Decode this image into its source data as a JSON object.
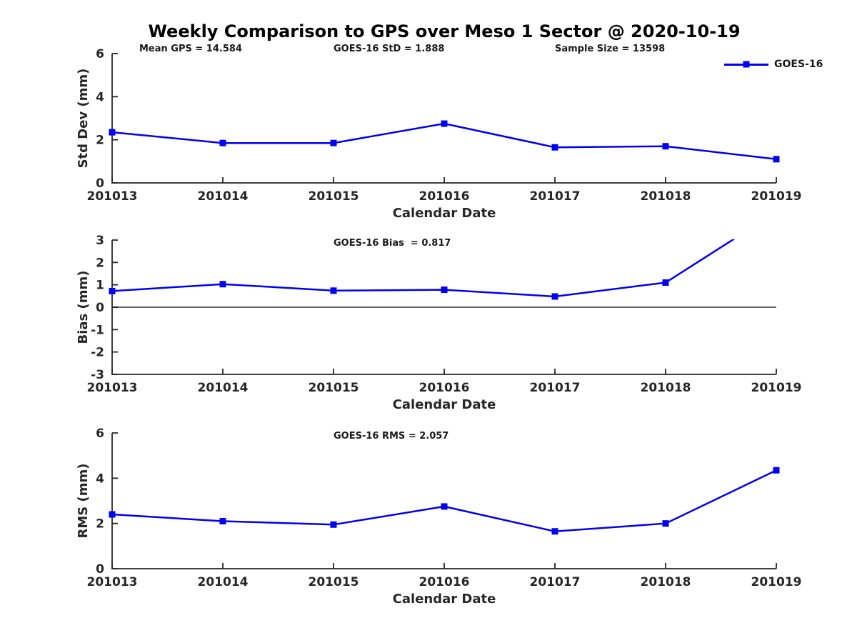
{
  "title": "Weekly Comparison to GPS over Meso 1 Sector @ 2020-10-19",
  "colors": {
    "line": "#0000EE",
    "axis": "#262626",
    "text": "#1a1a1a",
    "zero_line": "#000000",
    "background": "#FFFFFF"
  },
  "chart_data": {
    "type": "line",
    "categories": [
      "201013",
      "201014",
      "201015",
      "201016",
      "201017",
      "201018",
      "201019"
    ],
    "xlabel": "Calendar Date",
    "legend": {
      "label": "GOES-16",
      "position": "top-right",
      "marker": "filled-square"
    },
    "grid": false,
    "subplots": [
      {
        "id": "stddev",
        "ylabel": "Std Dev (mm)",
        "ylim": [
          0,
          6
        ],
        "yticks": [
          6,
          4,
          2,
          0
        ],
        "annotations": [
          {
            "text": "Mean GPS = 14.584",
            "xfrac": 0.041
          },
          {
            "text": "GOES-16 StD = 1.888",
            "xfrac": 0.333
          },
          {
            "text": "Sample Size = 13598",
            "xfrac": 0.667
          }
        ],
        "values": [
          2.35,
          1.85,
          1.85,
          2.75,
          1.65,
          1.7,
          1.1
        ]
      },
      {
        "id": "bias",
        "ylabel": "Bias (mm)",
        "ylim": [
          -3,
          3
        ],
        "yticks": [
          3,
          2,
          1,
          0,
          -1,
          -2,
          -3
        ],
        "zero_line": true,
        "annotations": [
          {
            "text": "GOES-16 Bias  = 0.817",
            "xfrac": 0.333
          }
        ],
        "values": [
          0.72,
          1.03,
          0.74,
          0.78,
          0.48,
          1.1,
          4.25
        ],
        "clipped_points": [
          "201019"
        ]
      },
      {
        "id": "rms",
        "ylabel": "RMS (mm)",
        "ylim": [
          0,
          6
        ],
        "yticks": [
          6,
          4,
          2,
          0
        ],
        "annotations": [
          {
            "text": "GOES-16 RMS = 2.057",
            "xfrac": 0.333
          }
        ],
        "values": [
          2.4,
          2.1,
          1.95,
          2.75,
          1.65,
          2.0,
          4.35
        ]
      }
    ]
  }
}
